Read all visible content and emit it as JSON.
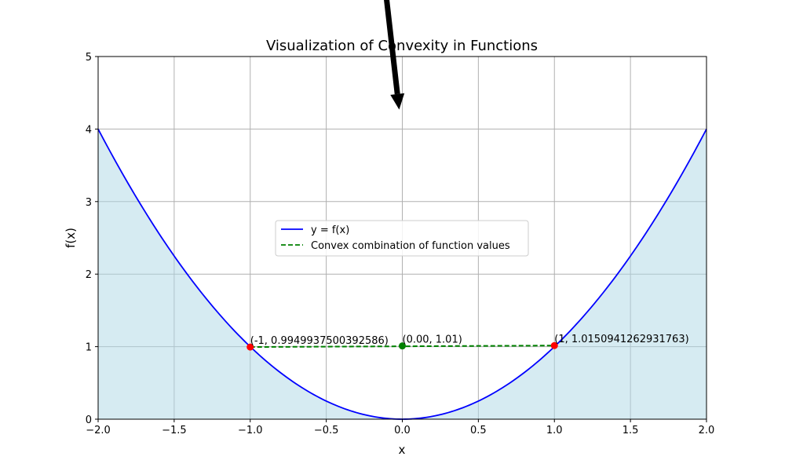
{
  "chart_data": {
    "type": "line",
    "title": "Visualization of Convexity in Functions",
    "xlabel": "x",
    "ylabel": "f(x)",
    "xlim": [
      -2,
      2
    ],
    "ylim": [
      0,
      5
    ],
    "xticks": [
      -2.0,
      -1.5,
      -1.0,
      -0.5,
      0.0,
      0.5,
      1.0,
      1.5,
      2.0
    ],
    "xtick_labels": [
      "−2.0",
      "−1.5",
      "−1.0",
      "−0.5",
      "0.0",
      "0.5",
      "1.0",
      "1.5",
      "2.0"
    ],
    "yticks": [
      0,
      1,
      2,
      3,
      4,
      5
    ],
    "ytick_labels": [
      "0",
      "1",
      "2",
      "3",
      "4",
      "5"
    ],
    "grid": true,
    "legend_position": "center",
    "series": [
      {
        "name": "y = f(x)",
        "kind": "curve",
        "function": "x^2",
        "x": [
          -2.0,
          -1.5,
          -1.0,
          -0.5,
          0.0,
          0.5,
          1.0,
          1.5,
          2.0
        ],
        "y": [
          4.0,
          2.25,
          1.0,
          0.25,
          0.0,
          0.25,
          1.0,
          2.25,
          4.0
        ],
        "color": "#0000ff",
        "fill_below": "#add8e6"
      },
      {
        "name": "Convex combination of function values",
        "kind": "dashed-line",
        "x": [
          -1,
          1
        ],
        "y": [
          0.9949937500392586,
          1.0150941262931763
        ],
        "color": "#008000"
      }
    ],
    "points": [
      {
        "x": -1,
        "y": 0.9949937500392586,
        "color": "#ff0000",
        "label": "(-1, 0.9949937500392586)"
      },
      {
        "x": 0.0,
        "y": 1.01,
        "color": "#008000",
        "label": "(0.00, 1.01)"
      },
      {
        "x": 1,
        "y": 1.0150941262931763,
        "color": "#ff0000",
        "label": "(1, 1.0150941262931763)"
      }
    ],
    "annotation_arrow": {
      "x": 0.0,
      "y": 4.3,
      "color": "#000000"
    }
  }
}
